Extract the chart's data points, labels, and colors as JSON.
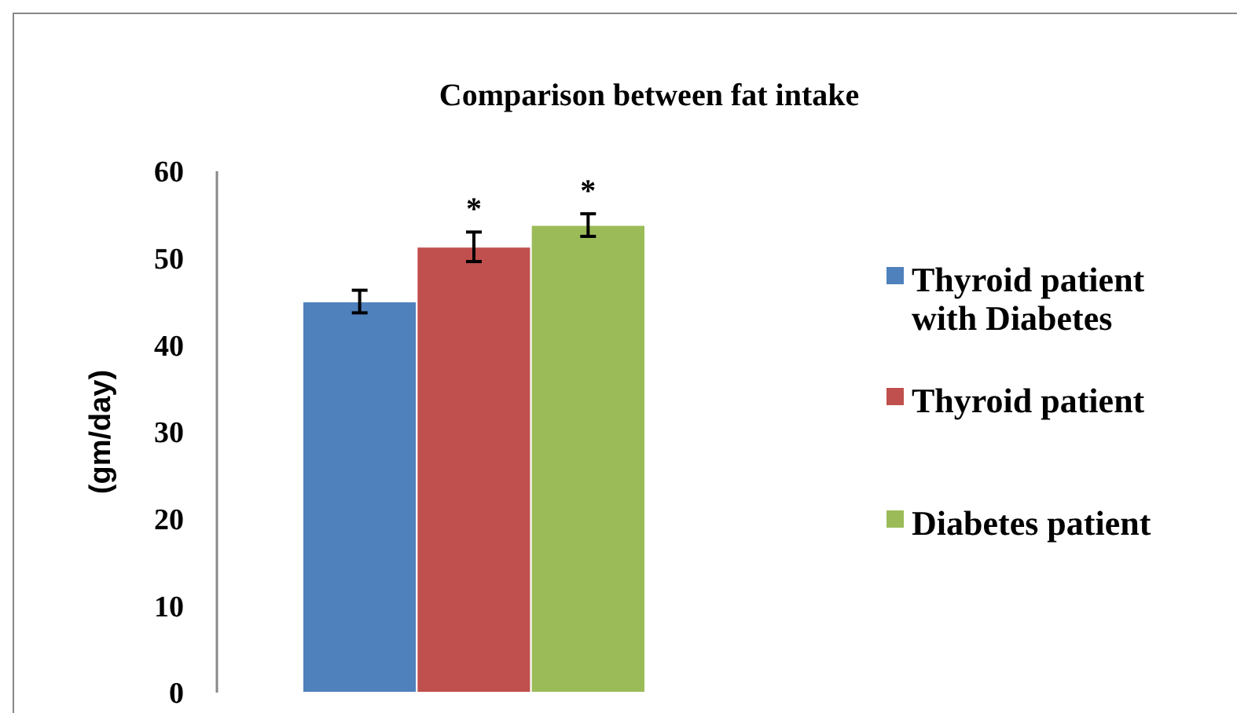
{
  "chart_data": {
    "type": "bar",
    "title": "Comparison between fat intake",
    "ylabel": "(gm/day)",
    "categories": [
      null
    ],
    "series": [
      {
        "name": "Thyroid patient with Diabetes",
        "color": "#4f81bd",
        "values": [
          45.0
        ],
        "errors": [
          1.3
        ],
        "value_labels": [
          null
        ]
      },
      {
        "name": "Thyroid patient",
        "color": "#c0504d",
        "values": [
          51.3
        ],
        "errors": [
          1.7
        ],
        "value_labels": [
          "*"
        ]
      },
      {
        "name": "Diabetes patient",
        "color": "#9bbb59",
        "values": [
          53.8
        ],
        "errors": [
          1.3
        ],
        "value_labels": [
          "*"
        ]
      }
    ],
    "ylim": [
      0,
      60
    ],
    "yticks": [
      0,
      10,
      20,
      30,
      40,
      50,
      60
    ],
    "grid": false,
    "legend": "right"
  }
}
